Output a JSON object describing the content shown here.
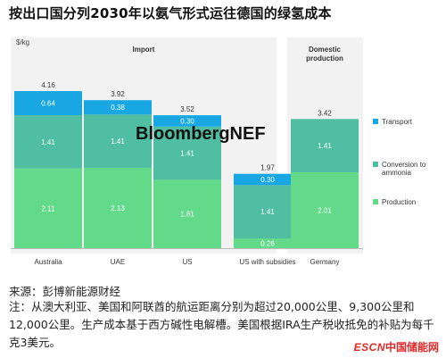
{
  "title": "按出口国分列2030年以氨气形式运往德国的绿氢成本",
  "watermark": "BloombergNEF",
  "source": "来源：彭博新能源财经",
  "note": "注：从澳大利亚、美国和阿联酋的航运距离分别为超过20,000公里、9,300公里和12,000公里。生产成本基于西方碱性电解槽。美国根据IRA生产税收抵免的补贴为每千克3美元。",
  "brand": {
    "escn": "ESCN",
    "cn": "中国储能网"
  },
  "colors": {
    "production": "#63d98a",
    "conversion": "#4fbea2",
    "transport": "#18a7e2"
  },
  "chart_data": {
    "type": "bar",
    "stacked": true,
    "ylabel": "$/kg",
    "groups": [
      {
        "label": "Import",
        "categories": [
          "Australia",
          "UAE",
          "US",
          "US with subsidies"
        ]
      },
      {
        "label": "Domestic production",
        "categories": [
          "Germany"
        ]
      }
    ],
    "categories": [
      "Australia",
      "UAE",
      "US",
      "US with subsidies",
      "Germany"
    ],
    "series": [
      {
        "name": "Production",
        "values": [
          2.11,
          2.13,
          1.81,
          0.26,
          2.01
        ]
      },
      {
        "name": "Conversion to ammonia",
        "values": [
          1.41,
          1.41,
          1.41,
          1.41,
          1.41
        ]
      },
      {
        "name": "Transport",
        "values": [
          0.64,
          0.38,
          0.3,
          0.3,
          null
        ]
      }
    ],
    "totals": [
      4.16,
      3.92,
      3.52,
      1.97,
      3.42
    ],
    "legend": [
      "Transport",
      "Conversion to ammonia",
      "Production"
    ],
    "legend_position": "right",
    "ylim": [
      0,
      4.5
    ],
    "grid": false
  }
}
